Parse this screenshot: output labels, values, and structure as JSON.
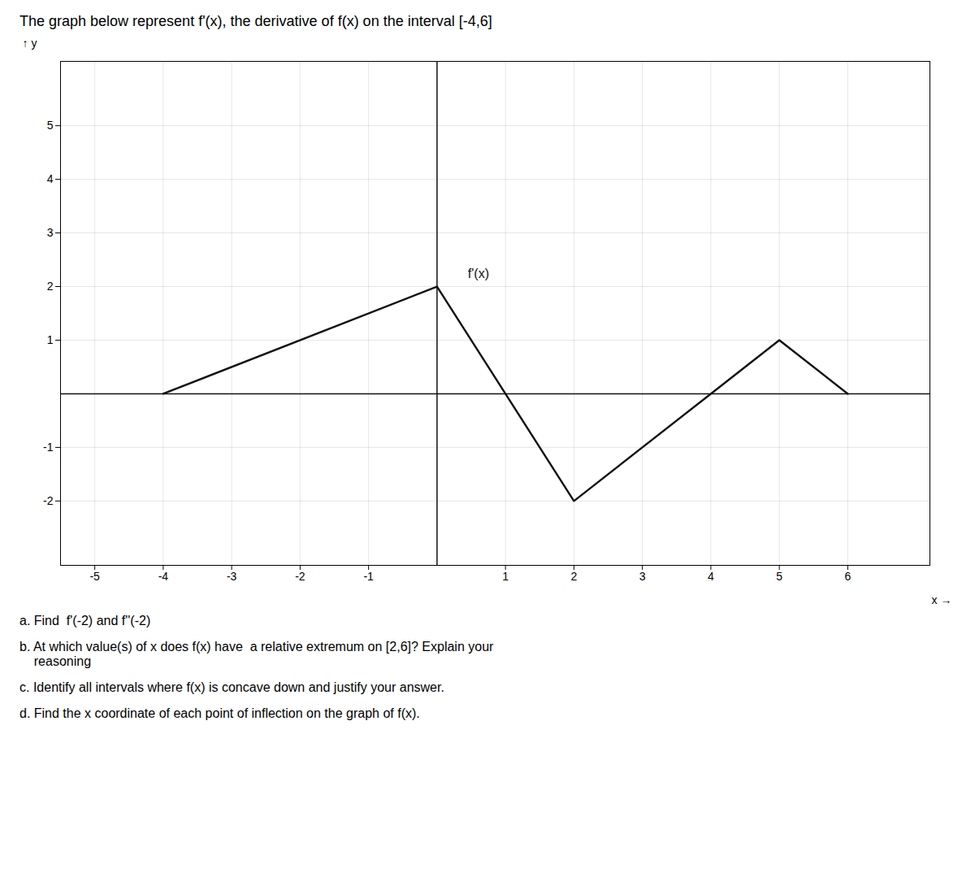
{
  "chart_data": {
    "type": "line",
    "title": "The graph below represent f'(x), the derivative of f(x) on the interval [-4,6]",
    "x": [
      -4,
      0,
      2,
      4,
      5,
      6
    ],
    "values": [
      0,
      2,
      -2,
      0,
      1,
      0
    ],
    "color": "#111111",
    "xlim": [
      -5.5,
      7.2
    ],
    "ylim": [
      -3.2,
      6.2
    ],
    "xticks": [
      -5,
      -4,
      -3,
      -2,
      -1,
      1,
      2,
      3,
      4,
      5,
      6
    ],
    "yticks": [
      -2,
      -1,
      1,
      2,
      3,
      4,
      5
    ],
    "xlabel": "x",
    "ylabel": "y",
    "grid": true,
    "annotations": [
      {
        "text": "f'(x)",
        "x": 0.45,
        "y": 2.08
      }
    ],
    "caption": [
      "a. Find  f'(-2) and f''(-2)",
      "b. At which value(s) of x does f(x) have  a relative extremum on [2,6]? Explain your\n    reasoning",
      "c. Identify all intervals where f(x) is concave down and justify your answer.",
      "d. Find the x coordinate of each point of inflection on the graph of f(x)."
    ]
  }
}
